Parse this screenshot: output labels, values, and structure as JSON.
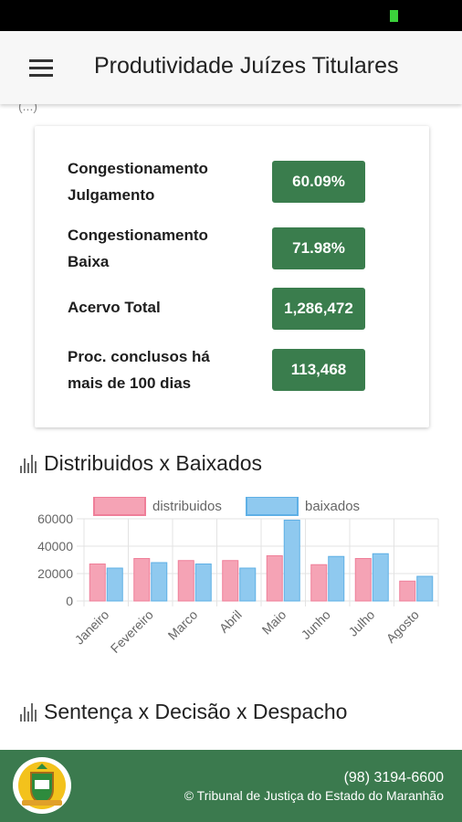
{
  "app_bar": {
    "title": "Produtividade Juízes Titulares",
    "menu_icon": "hamburger-icon"
  },
  "colors": {
    "accent_green": "#3a7d4d",
    "footer_green": "#3b7a4e",
    "series_distribuidos": "#f5a3b5",
    "series_baixados": "#8fc9ef"
  },
  "peek_text": "(...)",
  "metrics": [
    {
      "label_line1": "Congestionamento",
      "label_line2": "Julgamento",
      "value": "60.09%"
    },
    {
      "label_line1": "Congestionamento",
      "label_line2": "Baixa",
      "value": "71.98%"
    },
    {
      "label_line1": "Acervo Total",
      "label_line2": "",
      "value": "1,286,472"
    },
    {
      "label_line1": "Proc. conclusos há",
      "label_line2": "mais de 100 dias",
      "value": "113,468"
    }
  ],
  "sections": {
    "distribuidos_title": "Distribuidos x Baixados",
    "sentenca_title": "Sentença x Decisão x Despacho"
  },
  "chart_data": {
    "type": "bar",
    "categories": [
      "Janeiro",
      "Fevereiro",
      "Marco",
      "Abril",
      "Maio",
      "Junho",
      "Julho",
      "Agosto"
    ],
    "series": [
      {
        "name": "distribuidos",
        "values": [
          27000,
          31000,
          29500,
          29500,
          33000,
          26500,
          31000,
          14500
        ]
      },
      {
        "name": "baixados",
        "values": [
          24000,
          28000,
          27000,
          24000,
          59000,
          32500,
          34500,
          18000
        ]
      }
    ],
    "y_ticks": [
      "60000",
      "40000",
      "20000",
      "0"
    ],
    "ylim": [
      0,
      60000
    ],
    "title": "",
    "xlabel": "",
    "ylabel": "",
    "legend_position": "top",
    "grid": true
  },
  "footer": {
    "phone": "(98) 3194-6600",
    "copyright": "© Tribunal de Justiça do Estado do Maranhão",
    "logo_icon": "coat-of-arms-icon"
  }
}
